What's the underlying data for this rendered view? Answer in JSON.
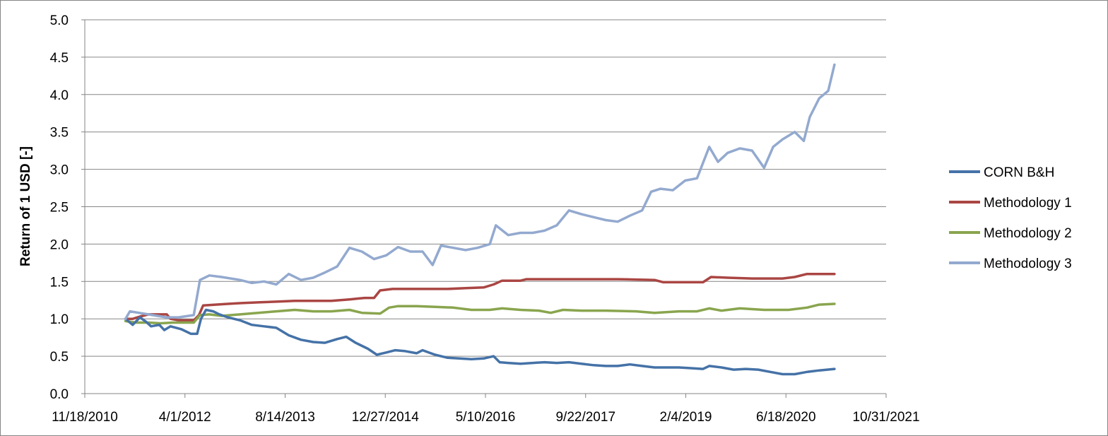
{
  "chart_data": {
    "type": "line",
    "title": "",
    "xlabel": "",
    "ylabel": "Return of 1 USD [-]",
    "xlim": [
      "2010-11-18",
      "2021-10-31"
    ],
    "ylim": [
      0,
      5
    ],
    "x_ticks": [
      "11/18/2010",
      "4/1/2012",
      "8/14/2013",
      "12/27/2014",
      "5/10/2016",
      "9/22/2017",
      "2/4/2019",
      "6/18/2020",
      "10/31/2021"
    ],
    "y_ticks": [
      "0.0",
      "0.5",
      "1.0",
      "1.5",
      "2.0",
      "2.5",
      "3.0",
      "3.5",
      "4.0",
      "4.5",
      "5.0"
    ],
    "grid": "horizontal",
    "legend_position": "right",
    "series": [
      {
        "name": "CORN B&H",
        "color": "#4572a7",
        "points": [
          [
            "2011-06-09",
            1.0
          ],
          [
            "2011-07-15",
            0.92
          ],
          [
            "2011-08-20",
            1.02
          ],
          [
            "2011-09-20",
            0.96
          ],
          [
            "2011-10-15",
            0.9
          ],
          [
            "2011-11-25",
            0.92
          ],
          [
            "2011-12-20",
            0.85
          ],
          [
            "2012-01-20",
            0.9
          ],
          [
            "2012-03-15",
            0.86
          ],
          [
            "2012-05-01",
            0.8
          ],
          [
            "2012-06-01",
            0.8
          ],
          [
            "2012-06-20",
            1.0
          ],
          [
            "2012-07-15",
            1.12
          ],
          [
            "2012-08-20",
            1.1
          ],
          [
            "2012-09-20",
            1.06
          ],
          [
            "2012-11-01",
            1.02
          ],
          [
            "2013-01-01",
            0.98
          ],
          [
            "2013-03-01",
            0.92
          ],
          [
            "2013-05-01",
            0.9
          ],
          [
            "2013-07-01",
            0.88
          ],
          [
            "2013-09-01",
            0.78
          ],
          [
            "2013-11-01",
            0.72
          ],
          [
            "2014-01-01",
            0.69
          ],
          [
            "2014-03-01",
            0.68
          ],
          [
            "2014-05-01",
            0.73
          ],
          [
            "2014-06-15",
            0.76
          ],
          [
            "2014-08-01",
            0.68
          ],
          [
            "2014-10-01",
            0.6
          ],
          [
            "2014-11-15",
            0.52
          ],
          [
            "2015-01-01",
            0.55
          ],
          [
            "2015-02-15",
            0.58
          ],
          [
            "2015-04-01",
            0.57
          ],
          [
            "2015-06-01",
            0.54
          ],
          [
            "2015-07-01",
            0.58
          ],
          [
            "2015-09-01",
            0.52
          ],
          [
            "2015-11-01",
            0.48
          ],
          [
            "2016-01-01",
            0.47
          ],
          [
            "2016-03-01",
            0.46
          ],
          [
            "2016-05-01",
            0.47
          ],
          [
            "2016-06-20",
            0.5
          ],
          [
            "2016-07-20",
            0.42
          ],
          [
            "2016-09-01",
            0.41
          ],
          [
            "2016-11-01",
            0.4
          ],
          [
            "2017-01-01",
            0.41
          ],
          [
            "2017-03-01",
            0.42
          ],
          [
            "2017-05-01",
            0.41
          ],
          [
            "2017-07-01",
            0.42
          ],
          [
            "2017-09-01",
            0.4
          ],
          [
            "2017-11-01",
            0.38
          ],
          [
            "2018-01-01",
            0.37
          ],
          [
            "2018-03-01",
            0.37
          ],
          [
            "2018-05-01",
            0.39
          ],
          [
            "2018-07-01",
            0.37
          ],
          [
            "2018-09-01",
            0.35
          ],
          [
            "2018-11-01",
            0.35
          ],
          [
            "2019-01-01",
            0.35
          ],
          [
            "2019-03-01",
            0.34
          ],
          [
            "2019-05-01",
            0.33
          ],
          [
            "2019-06-01",
            0.37
          ],
          [
            "2019-08-01",
            0.35
          ],
          [
            "2019-10-01",
            0.32
          ],
          [
            "2019-12-01",
            0.33
          ],
          [
            "2020-02-01",
            0.32
          ],
          [
            "2020-04-01",
            0.29
          ],
          [
            "2020-06-01",
            0.26
          ],
          [
            "2020-08-01",
            0.26
          ],
          [
            "2020-10-01",
            0.29
          ],
          [
            "2020-12-01",
            0.31
          ],
          [
            "2021-02-15",
            0.33
          ]
        ]
      },
      {
        "name": "Methodology 1",
        "color": "#aa4643",
        "points": [
          [
            "2011-06-09",
            1.0
          ],
          [
            "2011-07-15",
            1.0
          ],
          [
            "2011-08-20",
            1.03
          ],
          [
            "2011-10-01",
            1.06
          ],
          [
            "2011-11-15",
            1.06
          ],
          [
            "2012-01-01",
            1.06
          ],
          [
            "2012-01-20",
            1.0
          ],
          [
            "2012-03-01",
            0.98
          ],
          [
            "2012-05-15",
            0.98
          ],
          [
            "2012-06-10",
            1.05
          ],
          [
            "2012-07-01",
            1.18
          ],
          [
            "2012-09-01",
            1.19
          ],
          [
            "2012-11-01",
            1.2
          ],
          [
            "2013-01-01",
            1.21
          ],
          [
            "2013-04-01",
            1.22
          ],
          [
            "2013-07-01",
            1.23
          ],
          [
            "2013-10-01",
            1.24
          ],
          [
            "2014-01-01",
            1.24
          ],
          [
            "2014-04-01",
            1.24
          ],
          [
            "2014-07-01",
            1.26
          ],
          [
            "2014-09-15",
            1.28
          ],
          [
            "2014-11-01",
            1.28
          ],
          [
            "2014-12-01",
            1.38
          ],
          [
            "2015-02-01",
            1.4
          ],
          [
            "2015-05-01",
            1.4
          ],
          [
            "2015-08-01",
            1.4
          ],
          [
            "2015-11-01",
            1.4
          ],
          [
            "2016-02-01",
            1.41
          ],
          [
            "2016-05-01",
            1.42
          ],
          [
            "2016-06-20",
            1.46
          ],
          [
            "2016-08-01",
            1.51
          ],
          [
            "2016-11-01",
            1.51
          ],
          [
            "2016-12-01",
            1.53
          ],
          [
            "2017-03-01",
            1.53
          ],
          [
            "2017-09-01",
            1.53
          ],
          [
            "2018-03-01",
            1.53
          ],
          [
            "2018-09-01",
            1.52
          ],
          [
            "2018-10-15",
            1.49
          ],
          [
            "2019-01-01",
            1.49
          ],
          [
            "2019-05-01",
            1.49
          ],
          [
            "2019-06-10",
            1.56
          ],
          [
            "2019-09-01",
            1.55
          ],
          [
            "2020-01-01",
            1.54
          ],
          [
            "2020-06-01",
            1.54
          ],
          [
            "2020-08-01",
            1.56
          ],
          [
            "2020-10-01",
            1.6
          ],
          [
            "2021-02-15",
            1.6
          ]
        ]
      },
      {
        "name": "Methodology 2",
        "color": "#89a54e",
        "points": [
          [
            "2011-06-09",
            0.97
          ],
          [
            "2011-08-01",
            0.95
          ],
          [
            "2011-10-01",
            0.95
          ],
          [
            "2011-12-01",
            0.94
          ],
          [
            "2012-02-01",
            0.95
          ],
          [
            "2012-05-15",
            0.95
          ],
          [
            "2012-06-15",
            1.05
          ],
          [
            "2012-08-01",
            1.06
          ],
          [
            "2012-10-01",
            1.04
          ],
          [
            "2013-01-01",
            1.06
          ],
          [
            "2013-04-01",
            1.08
          ],
          [
            "2013-07-01",
            1.1
          ],
          [
            "2013-10-01",
            1.12
          ],
          [
            "2014-01-01",
            1.1
          ],
          [
            "2014-04-01",
            1.1
          ],
          [
            "2014-07-01",
            1.12
          ],
          [
            "2014-09-01",
            1.08
          ],
          [
            "2014-12-01",
            1.07
          ],
          [
            "2015-01-15",
            1.15
          ],
          [
            "2015-03-01",
            1.17
          ],
          [
            "2015-06-01",
            1.17
          ],
          [
            "2015-09-01",
            1.16
          ],
          [
            "2015-12-01",
            1.15
          ],
          [
            "2016-03-01",
            1.12
          ],
          [
            "2016-06-01",
            1.12
          ],
          [
            "2016-08-01",
            1.14
          ],
          [
            "2016-11-01",
            1.12
          ],
          [
            "2017-02-01",
            1.11
          ],
          [
            "2017-04-01",
            1.08
          ],
          [
            "2017-06-01",
            1.12
          ],
          [
            "2017-09-01",
            1.11
          ],
          [
            "2018-01-01",
            1.11
          ],
          [
            "2018-06-01",
            1.1
          ],
          [
            "2018-09-01",
            1.08
          ],
          [
            "2019-01-01",
            1.1
          ],
          [
            "2019-04-01",
            1.1
          ],
          [
            "2019-06-01",
            1.14
          ],
          [
            "2019-08-01",
            1.11
          ],
          [
            "2019-11-01",
            1.14
          ],
          [
            "2020-03-01",
            1.12
          ],
          [
            "2020-07-01",
            1.12
          ],
          [
            "2020-10-01",
            1.15
          ],
          [
            "2020-12-01",
            1.19
          ],
          [
            "2021-02-15",
            1.2
          ]
        ]
      },
      {
        "name": "Methodology 3",
        "color": "#93a9cf",
        "points": [
          [
            "2011-06-09",
            1.0
          ],
          [
            "2011-07-01",
            1.1
          ],
          [
            "2011-08-15",
            1.08
          ],
          [
            "2011-10-01",
            1.06
          ],
          [
            "2011-11-15",
            1.04
          ],
          [
            "2012-01-01",
            1.02
          ],
          [
            "2012-03-01",
            1.02
          ],
          [
            "2012-05-15",
            1.05
          ],
          [
            "2012-06-15",
            1.52
          ],
          [
            "2012-08-01",
            1.58
          ],
          [
            "2012-10-01",
            1.56
          ],
          [
            "2013-01-01",
            1.52
          ],
          [
            "2013-03-01",
            1.48
          ],
          [
            "2013-05-01",
            1.5
          ],
          [
            "2013-07-01",
            1.46
          ],
          [
            "2013-09-01",
            1.6
          ],
          [
            "2013-11-01",
            1.52
          ],
          [
            "2014-01-01",
            1.55
          ],
          [
            "2014-03-01",
            1.62
          ],
          [
            "2014-05-01",
            1.7
          ],
          [
            "2014-07-01",
            1.95
          ],
          [
            "2014-09-01",
            1.9
          ],
          [
            "2014-11-01",
            1.8
          ],
          [
            "2015-01-01",
            1.85
          ],
          [
            "2015-03-01",
            1.96
          ],
          [
            "2015-05-01",
            1.9
          ],
          [
            "2015-07-01",
            1.9
          ],
          [
            "2015-08-20",
            1.72
          ],
          [
            "2015-10-01",
            1.98
          ],
          [
            "2015-12-01",
            1.95
          ],
          [
            "2016-02-01",
            1.92
          ],
          [
            "2016-04-01",
            1.95
          ],
          [
            "2016-06-01",
            2.0
          ],
          [
            "2016-07-01",
            2.25
          ],
          [
            "2016-09-01",
            2.12
          ],
          [
            "2016-11-01",
            2.15
          ],
          [
            "2017-01-01",
            2.15
          ],
          [
            "2017-03-01",
            2.18
          ],
          [
            "2017-05-01",
            2.25
          ],
          [
            "2017-07-01",
            2.45
          ],
          [
            "2017-09-01",
            2.4
          ],
          [
            "2017-11-01",
            2.36
          ],
          [
            "2018-01-01",
            2.32
          ],
          [
            "2018-03-01",
            2.3
          ],
          [
            "2018-05-01",
            2.38
          ],
          [
            "2018-07-01",
            2.45
          ],
          [
            "2018-08-15",
            2.7
          ],
          [
            "2018-10-01",
            2.74
          ],
          [
            "2018-12-01",
            2.72
          ],
          [
            "2019-02-01",
            2.85
          ],
          [
            "2019-04-01",
            2.88
          ],
          [
            "2019-06-01",
            3.3
          ],
          [
            "2019-07-15",
            3.1
          ],
          [
            "2019-09-01",
            3.22
          ],
          [
            "2019-11-01",
            3.28
          ],
          [
            "2020-01-01",
            3.25
          ],
          [
            "2020-03-01",
            3.02
          ],
          [
            "2020-04-15",
            3.3
          ],
          [
            "2020-06-01",
            3.4
          ],
          [
            "2020-08-01",
            3.5
          ],
          [
            "2020-09-15",
            3.38
          ],
          [
            "2020-10-15",
            3.7
          ],
          [
            "2020-12-01",
            3.95
          ],
          [
            "2021-01-15",
            4.05
          ],
          [
            "2021-02-15",
            4.4
          ]
        ]
      }
    ]
  }
}
